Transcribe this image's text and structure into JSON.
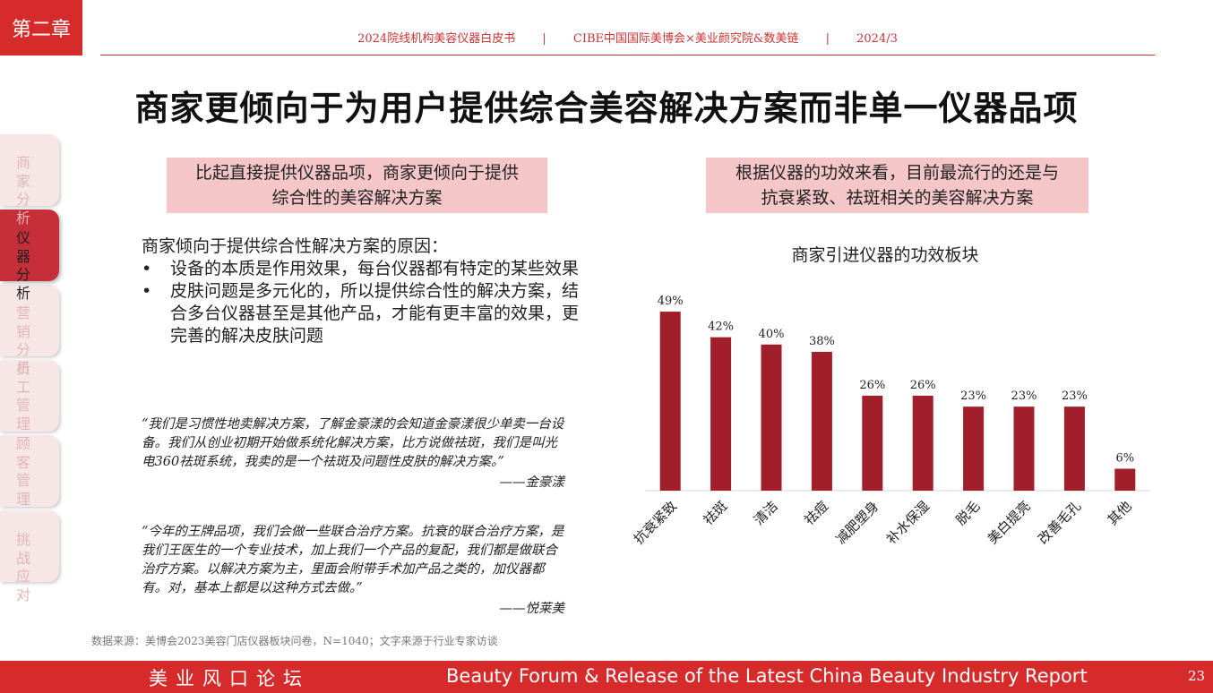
{
  "chapter": "第二章",
  "header": {
    "items": [
      "2024院线机构美容仪器白皮书",
      "CIBE中国国际美博会×美业颜究院&数美链",
      "2024/3"
    ],
    "separator": "|"
  },
  "title": "商家更倾向于为用户提供综合美容解决方案而非单一仪器品项",
  "side_nav": [
    {
      "label": "商家分析",
      "active": false
    },
    {
      "label": "仪器分析",
      "active": true
    },
    {
      "label": "营销分析",
      "active": false
    },
    {
      "label": "员工管理",
      "active": false
    },
    {
      "label": "顾客管理",
      "active": false
    },
    {
      "label": "挑战应对",
      "active": false
    }
  ],
  "left": {
    "callout": [
      "比起直接提供仪器品项，商家更倾向于提供",
      "综合性的美容解决方案"
    ],
    "intro": "商家倾向于提供综合性解决方案的原因：",
    "bullets": [
      "设备的本质是作用效果，每台仪器都有特定的某些效果",
      "皮肤问题是多元化的，所以提供综合性的解决方案，结合多台仪器甚至是其他产品，才能有更丰富的效果，更完善的解决皮肤问题"
    ],
    "quotes": [
      {
        "text": "“我们是习惯性地卖解决方案，了解金豪漾的会知道金豪漾很少单卖一台设备。我们从创业初期开始做系统化解决方案，比方说做祛斑，我们是叫光电360祛斑系统，我卖的是一个祛斑及问题性皮肤的解决方案。”",
        "attribution": "——金豪漾"
      },
      {
        "text": "“今年的王牌品项，我们会做一些联合治疗方案。抗衰的联合治疗方案，是我们王医生的一个专业技术，加上我们一个产品的复配，我们都是做联合治疗方案。以解决方案为主，里面会附带手术加产品之类的，加仪器都有。对，基本上都是以这种方式去做。”",
        "attribution": "——悦莱美"
      }
    ]
  },
  "right": {
    "callout": [
      "根据仪器的功效来看，目前最流行的还是与",
      "抗衰紧致、祛斑相关的美容解决方案"
    ]
  },
  "chart_data": {
    "type": "bar",
    "title": "商家引进仪器的功效板块",
    "categories": [
      "抗衰紧致",
      "祛斑",
      "清洁",
      "祛痘",
      "减肥塑身",
      "补水保湿",
      "脱毛",
      "美白提亮",
      "改善毛孔",
      "其他"
    ],
    "values": [
      49,
      42,
      40,
      38,
      26,
      26,
      23,
      23,
      23,
      6
    ],
    "labels": [
      "49%",
      "42%",
      "40%",
      "38%",
      "26%",
      "26%",
      "23%",
      "23%",
      "23%",
      "6%"
    ],
    "bar_color": "#a01f2b",
    "ylim": [
      0,
      50
    ],
    "grid": false
  },
  "source": "数据来源：美博会2023美容门店仪器板块问卷，N=1040；文字来源于行业专家访谈",
  "footer": {
    "left": "美业风口论坛",
    "right": "Beauty Forum & Release of the Latest China Beauty Industry Report",
    "page": "23"
  },
  "colors": {
    "brand_red": "#d62b2b",
    "callout_bg": "#f4c6c8",
    "bar": "#a01f2b"
  }
}
